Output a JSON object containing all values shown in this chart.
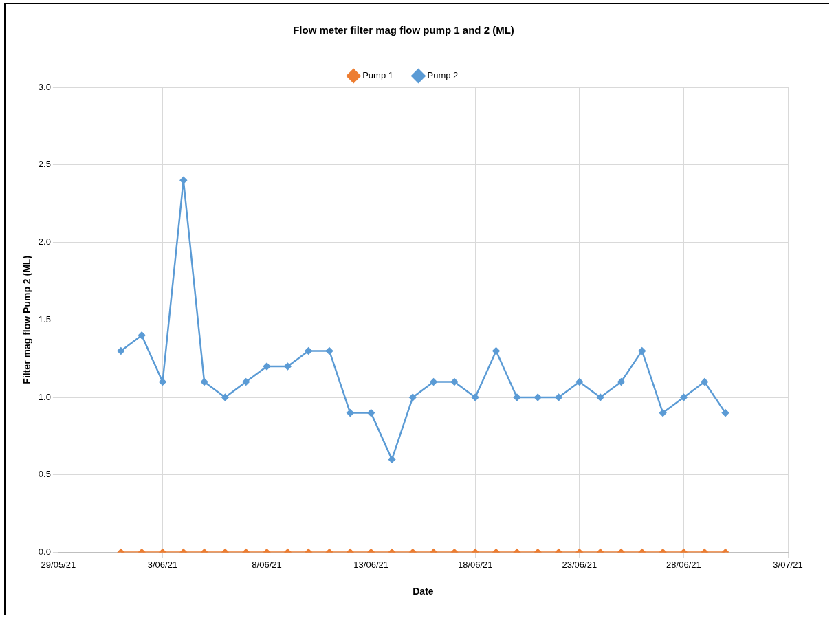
{
  "chart_data": {
    "type": "line",
    "title": "Flow meter filter mag flow pump 1 and 2 (ML)",
    "xlabel": "Date",
    "ylabel": "Filter mag flow Pump 2 (ML)",
    "x": [
      "--06-01",
      "--06-02",
      "--06-03",
      "--06-04",
      "--06-05",
      "--06-06",
      "--06-07",
      "--06-08",
      "--06-09",
      "--06-10",
      "--06-11",
      "--06-12",
      "--06-13",
      "--06-14",
      "--06-15",
      "--06-16",
      "--06-17",
      "--06-18",
      "--06-19",
      "--06-20",
      "--06-21",
      "--06-22",
      "--06-23",
      "--06-24",
      "--06-25",
      "--06-26",
      "--06-27",
      "--06-28",
      "--06-29",
      "--06-30"
    ],
    "series": [
      {
        "name": "Pump 1",
        "color": "#ed7d31",
        "values": [
          0,
          0,
          0,
          0,
          0,
          0,
          0,
          0,
          0,
          0,
          0,
          0,
          0,
          0,
          0,
          0,
          0,
          0,
          0,
          0,
          0,
          0,
          0,
          0,
          0,
          0,
          0,
          0,
          0,
          0
        ]
      },
      {
        "name": "Pump 2",
        "color": "#5b9bd5",
        "values": [
          1.3,
          1.4,
          1.1,
          2.4,
          1.1,
          1.0,
          1.1,
          1.2,
          1.2,
          1.3,
          1.3,
          0.9,
          0.9,
          0.6,
          1.0,
          1.1,
          1.1,
          1.0,
          1.3,
          1.0,
          1.0,
          1.0,
          1.1,
          1.0,
          1.1,
          1.3,
          0.9,
          1.0,
          1.1,
          0.9
        ]
      }
    ],
    "xlim": [
      "--05-29",
      "--07-03"
    ],
    "xticks": [
      {
        "value": "--05-29",
        "label": "29/05/21"
      },
      {
        "value": "--06-03",
        "label": "3/06/21"
      },
      {
        "value": "--06-08",
        "label": "8/06/21"
      },
      {
        "value": "--06-13",
        "label": "13/06/21"
      },
      {
        "value": "--06-18",
        "label": "18/06/21"
      },
      {
        "value": "--06-23",
        "label": "23/06/21"
      },
      {
        "value": "--06-28",
        "label": "28/06/21"
      },
      {
        "value": "--07-03",
        "label": "3/07/21"
      }
    ],
    "ylim": [
      0,
      3
    ],
    "yticks": [
      {
        "value": 0,
        "label": "0.0"
      },
      {
        "value": 0.5,
        "label": "0.5"
      },
      {
        "value": 1,
        "label": "1.0"
      },
      {
        "value": 1.5,
        "label": "1.5"
      },
      {
        "value": 2,
        "label": "2.0"
      },
      {
        "value": 2.5,
        "label": "2.5"
      },
      {
        "value": 3,
        "label": "3.0"
      }
    ],
    "grid": true,
    "legend": "top",
    "marker": "diamond",
    "line_style": "solid"
  }
}
